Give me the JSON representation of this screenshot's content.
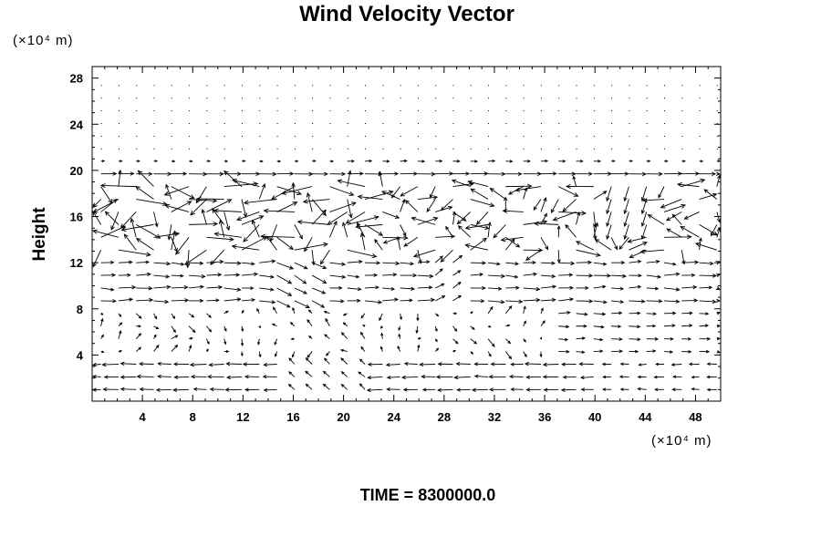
{
  "chart_data": {
    "type": "vector_field",
    "title": "Wind Velocity Vector",
    "ylabel": "Height",
    "xlabel": "",
    "x_unit_label": "(×10⁴ m)",
    "y_unit_label": "(×10⁴ m)",
    "xlim": [
      0,
      50
    ],
    "ylim": [
      0,
      29
    ],
    "x_ticks": [
      4,
      8,
      12,
      16,
      20,
      24,
      28,
      32,
      36,
      40,
      44,
      48
    ],
    "y_ticks": [
      4,
      8,
      12,
      16,
      20,
      24,
      28
    ],
    "x_tick_labels": [
      "4",
      "8",
      "12",
      "16",
      "20",
      "24",
      "28",
      "32",
      "36",
      "40",
      "44",
      "48"
    ],
    "y_tick_labels": [
      "4",
      "8",
      "12",
      "16",
      "20",
      "24",
      "28"
    ],
    "grid": false,
    "sample_spacing": {
      "dx": 1.4,
      "dy": 1.1
    },
    "top_boundary_height": 20,
    "dominant_bands": [
      {
        "z_range": [
          0,
          3.5
        ],
        "direction": "westward",
        "note": "near-surface easterlies, arrows pointing left"
      },
      {
        "z_range": [
          4,
          8
        ],
        "direction": "mixed",
        "note": "weak recirculating flow"
      },
      {
        "z_range": [
          8,
          12
        ],
        "direction": "eastward",
        "note": "arrows pointing right"
      },
      {
        "z_range": [
          12,
          19
        ],
        "direction": "turbulent",
        "note": "strong jets, crossing vectors"
      },
      {
        "z_range": [
          19,
          20.5
        ],
        "direction": "eastward",
        "note": "layer at top boundary"
      },
      {
        "z_range": [
          20.5,
          29
        ],
        "direction": "near-zero",
        "note": "calm region, dots only"
      }
    ]
  },
  "footer": {
    "time_label": "TIME = 8300000.0"
  }
}
